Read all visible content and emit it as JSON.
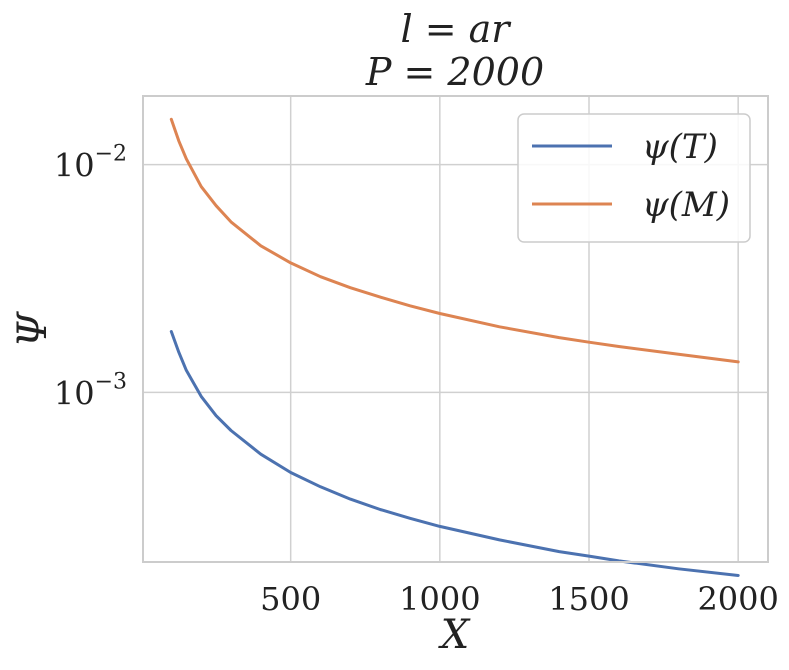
{
  "chart_data": {
    "type": "line",
    "title_lines": [
      "l = ar",
      "P = 2000"
    ],
    "xlabel": "X",
    "ylabel": "Ψ",
    "xlim": [
      5,
      2100
    ],
    "ylim": [
      0.00018,
      0.02
    ],
    "yscale": "log",
    "x_ticks": [
      500,
      1000,
      1500,
      2000
    ],
    "x_tick_labels": [
      "500",
      "1000",
      "1500",
      "2000"
    ],
    "y_ticks": [
      0.001,
      0.01
    ],
    "y_tick_labels": [
      {
        "base": "10",
        "exp": "−3"
      },
      {
        "base": "10",
        "exp": "−2"
      }
    ],
    "grid": true,
    "legend_position": "top-right",
    "x": [
      100,
      125,
      150,
      200,
      250,
      300,
      400,
      500,
      600,
      700,
      800,
      900,
      1000,
      1200,
      1400,
      1500,
      1600,
      1800,
      2000
    ],
    "series": [
      {
        "name": "ψ(T)",
        "color": "#4c72b0",
        "values": [
          0.00185,
          0.0015,
          0.00125,
          0.00096,
          0.00079,
          0.00068,
          0.000535,
          0.000445,
          0.000385,
          0.00034,
          0.000306,
          0.00028,
          0.000258,
          0.000225,
          0.0002,
          0.000191,
          0.000182,
          0.000168,
          0.000157
        ]
      },
      {
        "name": "ψ(M)",
        "color": "#dd8452",
        "values": [
          0.0158,
          0.0127,
          0.0106,
          0.008,
          0.0066,
          0.0056,
          0.0044,
          0.0037,
          0.00322,
          0.00288,
          0.00262,
          0.0024,
          0.00222,
          0.00194,
          0.00174,
          0.00166,
          0.00159,
          0.00147,
          0.00136
        ]
      }
    ]
  }
}
